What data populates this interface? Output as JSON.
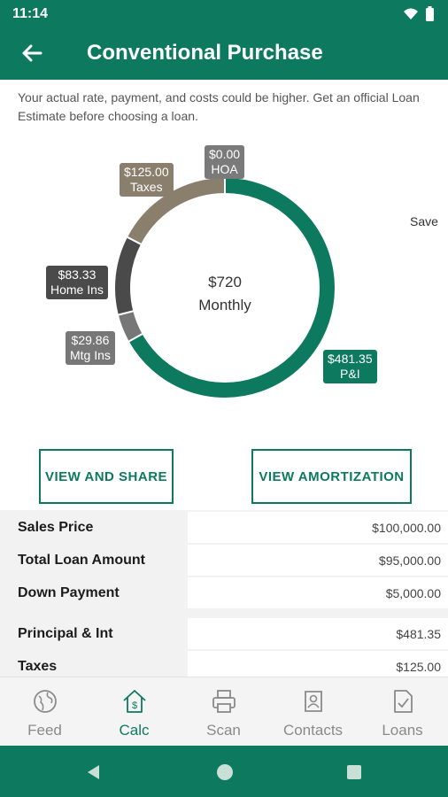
{
  "status_bar": {
    "time": "11:14"
  },
  "app_bar": {
    "title": "Conventional Purchase",
    "back_icon": "arrow-left-icon"
  },
  "disclaimer": "Your actual rate, payment, and costs could be higher. Get an official Loan Estimate before choosing a loan.",
  "save_label": "Save",
  "chart_data": {
    "type": "pie",
    "title": "",
    "center_amount": "$720",
    "center_label": "Monthly",
    "slices": [
      {
        "value": 481.35,
        "amount": "$481.35",
        "label": "P&I",
        "color": "#0d7a5f"
      },
      {
        "value": 29.86,
        "amount": "$29.86",
        "label": "Mtg Ins",
        "color": "#777777"
      },
      {
        "value": 83.33,
        "amount": "$83.33",
        "label": "Home Ins",
        "color": "#4a4a4a"
      },
      {
        "value": 125.0,
        "amount": "$125.00",
        "label": "Taxes",
        "color": "#8a7f6c"
      },
      {
        "value": 0.0,
        "amount": "$0.00",
        "label": "HOA",
        "color": "#7a7a7a"
      }
    ]
  },
  "buttons": {
    "view_share": "VIEW AND SHARE",
    "view_amortization": "VIEW AMORTIZATION"
  },
  "summary_rows": [
    {
      "label": "Sales Price",
      "value": "$100,000.00"
    },
    {
      "label": "Total Loan Amount",
      "value": "$95,000.00"
    },
    {
      "label": "Down Payment",
      "value": "$5,000.00"
    },
    {
      "label": "Principal & Int",
      "value": "$481.35"
    },
    {
      "label": "Taxes",
      "value": "$125.00"
    }
  ],
  "bottom_nav": [
    {
      "label": "Feed",
      "icon": "globe-icon",
      "active": false
    },
    {
      "label": "Calc",
      "icon": "house-dollar-icon",
      "active": true
    },
    {
      "label": "Scan",
      "icon": "printer-icon",
      "active": false
    },
    {
      "label": "Contacts",
      "icon": "contacts-icon",
      "active": false
    },
    {
      "label": "Loans",
      "icon": "document-check-icon",
      "active": false
    }
  ],
  "colors": {
    "brand": "#0d7a5f",
    "accent": "#0d7a5f"
  }
}
